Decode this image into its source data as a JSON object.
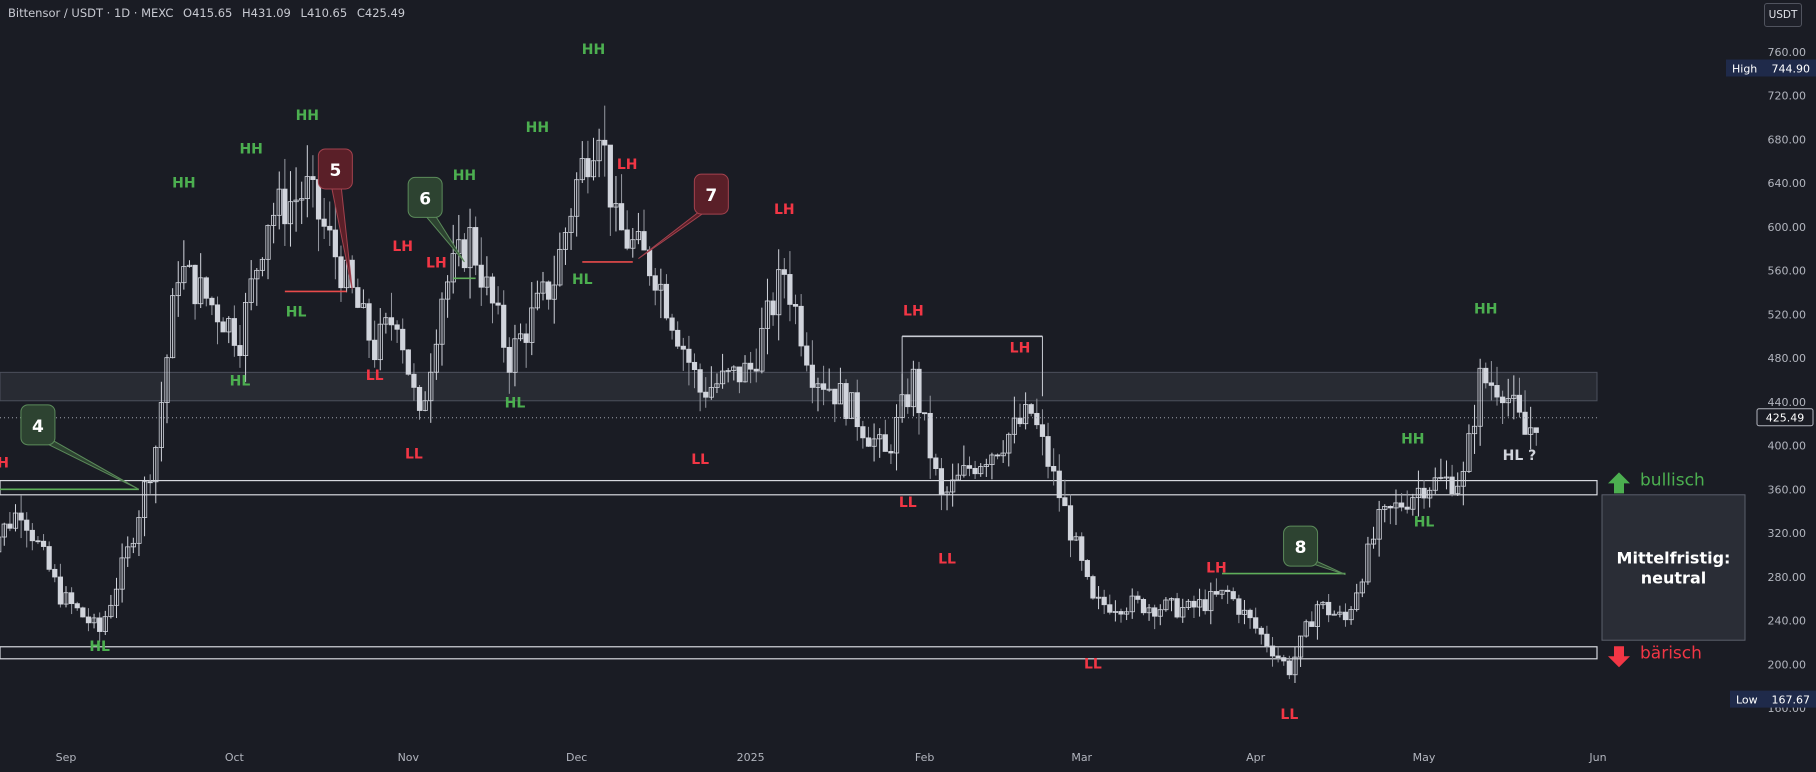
{
  "header": {
    "symbol": "Bittensor / USDT · 1D · MEXC",
    "open": "O415.65",
    "high": "H431.09",
    "low": "L410.65",
    "close": "C425.49",
    "currency_button": "USDT"
  },
  "colors": {
    "background": "#1a1c24",
    "bull": "#22ab94",
    "bear": "#f23645",
    "candle": "#d1d4dc",
    "hh_hl": "#4caf50",
    "lh_ll": "#f23645"
  },
  "chart_data": {
    "type": "candlestick",
    "title": "",
    "ylim": [
      160,
      775
    ],
    "y_ticks": [
      "760.00",
      "720.00",
      "680.00",
      "640.00",
      "600.00",
      "560.00",
      "520.00",
      "480.00",
      "440.00",
      "400.00",
      "360.00",
      "320.00",
      "280.00",
      "240.00",
      "200.00",
      "160.00"
    ],
    "x_ticks": [
      "Sep",
      "Oct",
      "Nov",
      "Dec",
      "2025",
      "Feb",
      "Mar",
      "Apr",
      "May",
      "Jun"
    ],
    "last_price": "425.49",
    "high_marker": {
      "label": "High",
      "value": "744.90"
    },
    "low_marker": {
      "label": "Low",
      "value": "167.67"
    },
    "zone_bullish": "bullisch",
    "zone_bearish": "bärisch",
    "box_text_1": "Mittelfristig:",
    "box_text_2": "neutral",
    "swing_labels": [
      {
        "text": "LH",
        "color": "red",
        "date": "2024-08-20",
        "price": 380
      },
      {
        "text": "HL",
        "color": "green",
        "date": "2024-09-07",
        "price": 212
      },
      {
        "text": "HH",
        "color": "green",
        "date": "2024-09-22",
        "price": 636
      },
      {
        "text": "HL",
        "color": "green",
        "date": "2024-10-02",
        "price": 455
      },
      {
        "text": "HH",
        "color": "green",
        "date": "2024-10-04",
        "price": 667
      },
      {
        "text": "HL",
        "color": "green",
        "date": "2024-10-12",
        "price": 518
      },
      {
        "text": "HH",
        "color": "green",
        "date": "2024-10-14",
        "price": 698
      },
      {
        "text": "LL",
        "color": "red",
        "date": "2024-10-26",
        "price": 460
      },
      {
        "text": "LH",
        "color": "red",
        "date": "2024-10-31",
        "price": 578
      },
      {
        "text": "LL",
        "color": "red",
        "date": "2024-11-02",
        "price": 388
      },
      {
        "text": "LH",
        "color": "red",
        "date": "2024-11-06",
        "price": 563
      },
      {
        "text": "HH",
        "color": "green",
        "date": "2024-11-11",
        "price": 643
      },
      {
        "text": "HL",
        "color": "green",
        "date": "2024-11-20",
        "price": 435
      },
      {
        "text": "HH",
        "color": "green",
        "date": "2024-11-24",
        "price": 687
      },
      {
        "text": "HL",
        "color": "green",
        "date": "2024-12-02",
        "price": 548
      },
      {
        "text": "HH",
        "color": "green",
        "date": "2024-12-04",
        "price": 758
      },
      {
        "text": "LH",
        "color": "red",
        "date": "2024-12-10",
        "price": 653
      },
      {
        "text": "LL",
        "color": "red",
        "date": "2024-12-23",
        "price": 383
      },
      {
        "text": "LH",
        "color": "red",
        "date": "2025-01-07",
        "price": 612
      },
      {
        "text": "LH",
        "color": "red",
        "date": "2025-01-30",
        "price": 519
      },
      {
        "text": "LL",
        "color": "red",
        "date": "2025-01-29",
        "price": 344
      },
      {
        "text": "LL",
        "color": "red",
        "date": "2025-02-05",
        "price": 292
      },
      {
        "text": "LH",
        "color": "red",
        "date": "2025-02-18",
        "price": 485
      },
      {
        "text": "LL",
        "color": "red",
        "date": "2025-03-03",
        "price": 196
      },
      {
        "text": "LH",
        "color": "red",
        "date": "2025-03-25",
        "price": 284
      },
      {
        "text": "LL",
        "color": "red",
        "date": "2025-04-07",
        "price": 150
      },
      {
        "text": "HH",
        "color": "green",
        "date": "2025-04-29",
        "price": 402
      },
      {
        "text": "HL",
        "color": "green",
        "date": "2025-05-01",
        "price": 326
      },
      {
        "text": "HH",
        "color": "green",
        "date": "2025-05-12",
        "price": 521
      },
      {
        "text": "HL ?",
        "color": "gray",
        "date": "2025-05-18",
        "price": 387
      }
    ],
    "numbered_callouts": [
      {
        "text": "4",
        "color": "green",
        "date": "2024-08-27",
        "price": 419,
        "target_date": "2024-09-14",
        "target_price": 360
      },
      {
        "text": "5",
        "color": "red",
        "date": "2024-10-19",
        "price": 653,
        "target_date": "2024-10-22",
        "target_price": 543
      },
      {
        "text": "6",
        "color": "green",
        "date": "2024-11-04",
        "price": 627,
        "target_date": "2024-11-11",
        "target_price": 568
      },
      {
        "text": "7",
        "color": "red",
        "date": "2024-12-25",
        "price": 630,
        "target_date": "2024-12-12",
        "target_price": 571
      },
      {
        "text": "8",
        "color": "green",
        "date": "2025-04-09",
        "price": 308,
        "target_date": "2025-04-17",
        "target_price": 282
      }
    ],
    "levels": [
      {
        "price_from": 441,
        "price_to": 467,
        "kind": "resistance-zone"
      },
      {
        "price_from": 355,
        "price_to": 368,
        "kind": "bullish-line"
      },
      {
        "price_from": 205,
        "price_to": 216,
        "kind": "bearish-line"
      }
    ],
    "segments": [
      {
        "from_date": "2024-08-17",
        "to_date": "2024-09-14",
        "price": 360,
        "color": "green"
      },
      {
        "from_date": "2024-10-10",
        "to_date": "2024-10-21",
        "price": 541,
        "color": "red"
      },
      {
        "from_date": "2024-11-09",
        "to_date": "2024-11-13",
        "price": 553,
        "color": "green"
      },
      {
        "from_date": "2024-12-02",
        "to_date": "2024-12-11",
        "price": 568,
        "color": "red"
      },
      {
        "from_date": "2025-01-28",
        "to_date": "2025-02-22",
        "price": 500,
        "color": "white"
      },
      {
        "from_date": "2025-03-26",
        "to_date": "2025-04-17",
        "price": 283,
        "color": "green"
      }
    ],
    "closes": [
      {
        "date": "2024-08-17",
        "close": 300
      },
      {
        "date": "2024-08-24",
        "close": 343
      },
      {
        "date": "2024-08-31",
        "close": 263
      },
      {
        "date": "2024-09-07",
        "close": 230
      },
      {
        "date": "2024-09-12",
        "close": 302
      },
      {
        "date": "2024-09-17",
        "close": 400
      },
      {
        "date": "2024-09-21",
        "close": 563
      },
      {
        "date": "2024-09-26",
        "close": 535
      },
      {
        "date": "2024-10-02",
        "close": 500
      },
      {
        "date": "2024-10-07",
        "close": 610
      },
      {
        "date": "2024-10-14",
        "close": 633
      },
      {
        "date": "2024-10-19",
        "close": 575
      },
      {
        "date": "2024-10-26",
        "close": 488
      },
      {
        "date": "2024-10-30",
        "close": 522
      },
      {
        "date": "2024-11-03",
        "close": 420
      },
      {
        "date": "2024-11-07",
        "close": 540
      },
      {
        "date": "2024-11-12",
        "close": 590
      },
      {
        "date": "2024-11-19",
        "close": 480
      },
      {
        "date": "2024-11-27",
        "close": 553
      },
      {
        "date": "2024-12-01",
        "close": 640
      },
      {
        "date": "2024-12-05",
        "close": 700
      },
      {
        "date": "2024-12-08",
        "close": 600
      },
      {
        "date": "2024-12-15",
        "close": 560
      },
      {
        "date": "2024-12-23",
        "close": 450
      },
      {
        "date": "2025-01-01",
        "close": 470
      },
      {
        "date": "2025-01-07",
        "close": 560
      },
      {
        "date": "2025-01-12",
        "close": 470
      },
      {
        "date": "2025-01-18",
        "close": 440
      },
      {
        "date": "2025-01-25",
        "close": 390
      },
      {
        "date": "2025-01-30",
        "close": 460
      },
      {
        "date": "2025-02-04",
        "close": 350
      },
      {
        "date": "2025-02-09",
        "close": 380
      },
      {
        "date": "2025-02-14",
        "close": 400
      },
      {
        "date": "2025-02-20",
        "close": 430
      },
      {
        "date": "2025-02-26",
        "close": 340
      },
      {
        "date": "2025-03-03",
        "close": 255
      },
      {
        "date": "2025-03-10",
        "close": 255
      },
      {
        "date": "2025-03-20",
        "close": 250
      },
      {
        "date": "2025-03-27",
        "close": 265
      },
      {
        "date": "2025-04-03",
        "close": 220
      },
      {
        "date": "2025-04-07",
        "close": 195
      },
      {
        "date": "2025-04-12",
        "close": 255
      },
      {
        "date": "2025-04-17",
        "close": 240
      },
      {
        "date": "2025-04-23",
        "close": 330
      },
      {
        "date": "2025-05-01",
        "close": 365
      },
      {
        "date": "2025-05-08",
        "close": 370
      },
      {
        "date": "2025-05-11",
        "close": 460
      },
      {
        "date": "2025-05-15",
        "close": 455
      },
      {
        "date": "2025-05-19",
        "close": 410
      },
      {
        "date": "2025-05-21",
        "close": 425
      }
    ]
  }
}
